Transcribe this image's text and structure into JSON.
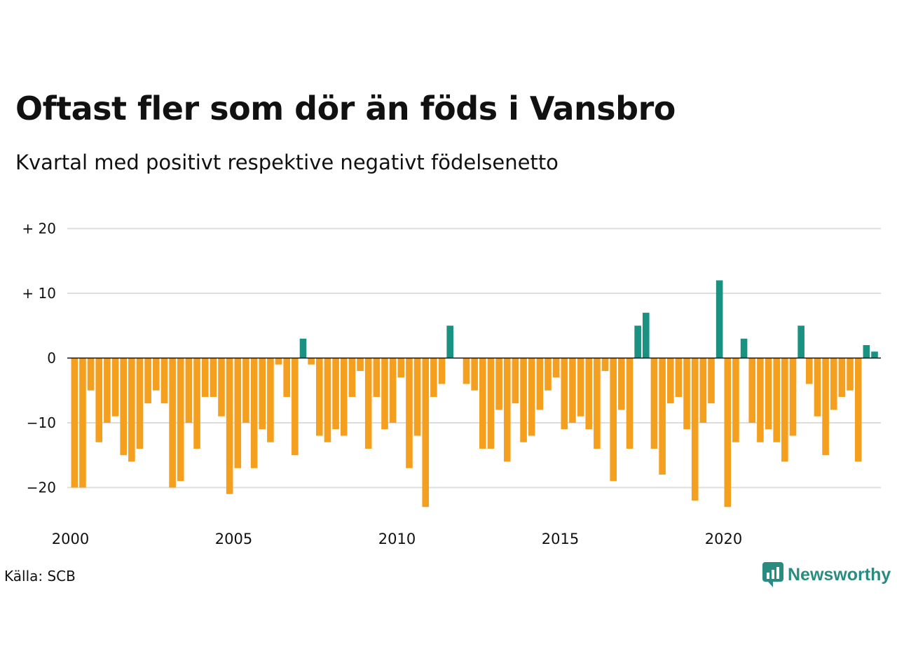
{
  "title": "Oftast fler som dör än föds i Vansbro",
  "subtitle": "Kvartal med positivt respektive negativt födelsenetto",
  "source": "Källa: SCB",
  "brand": {
    "name": "Newsworthy",
    "icon": "newsworthy-logo-icon",
    "color": "#2a8c80"
  },
  "colors": {
    "positive": "#1a9281",
    "negative": "#f59f1e",
    "grid": "#dddddd",
    "zero_line": "#111111"
  },
  "chart_data": {
    "type": "bar",
    "title": "Oftast fler som dör än föds i Vansbro",
    "subtitle": "Kvartal med positivt respektive negativt födelsenetto",
    "x_start": "2000 Q1",
    "x_ticks": [
      "2000",
      "2005",
      "2010",
      "2015",
      "2020"
    ],
    "y_ticks": [
      {
        "value": 20,
        "label": "+ 20"
      },
      {
        "value": 10,
        "label": "+ 10"
      },
      {
        "value": 0,
        "label": "0"
      },
      {
        "value": -10,
        "label": "−10"
      },
      {
        "value": -20,
        "label": "−20"
      }
    ],
    "ylim": [
      -25,
      20
    ],
    "grid": true,
    "values": [
      -20,
      -20,
      -5,
      -13,
      -10,
      -9,
      -15,
      -16,
      -14,
      -7,
      -5,
      -7,
      -20,
      -19,
      -10,
      -14,
      -6,
      -6,
      -9,
      -21,
      -17,
      -10,
      -17,
      -11,
      -13,
      -1,
      -6,
      -15,
      3,
      -1,
      -12,
      -13,
      -11,
      -12,
      -6,
      -2,
      -14,
      -6,
      -11,
      -10,
      -3,
      -17,
      -12,
      -23,
      -6,
      -4,
      5,
      0,
      -4,
      -5,
      -14,
      -14,
      -8,
      -16,
      -7,
      -13,
      -12,
      -8,
      -5,
      -3,
      -11,
      -10,
      -9,
      -11,
      -14,
      -2,
      -19,
      -8,
      -14,
      5,
      7,
      -14,
      -18,
      -7,
      -6,
      -11,
      -22,
      -10,
      -7,
      12,
      -23,
      -13,
      3,
      -10,
      -13,
      -11,
      -13,
      -16,
      -12,
      5,
      -4,
      -9,
      -15,
      -8,
      -6,
      -5,
      -16,
      2,
      1
    ]
  }
}
